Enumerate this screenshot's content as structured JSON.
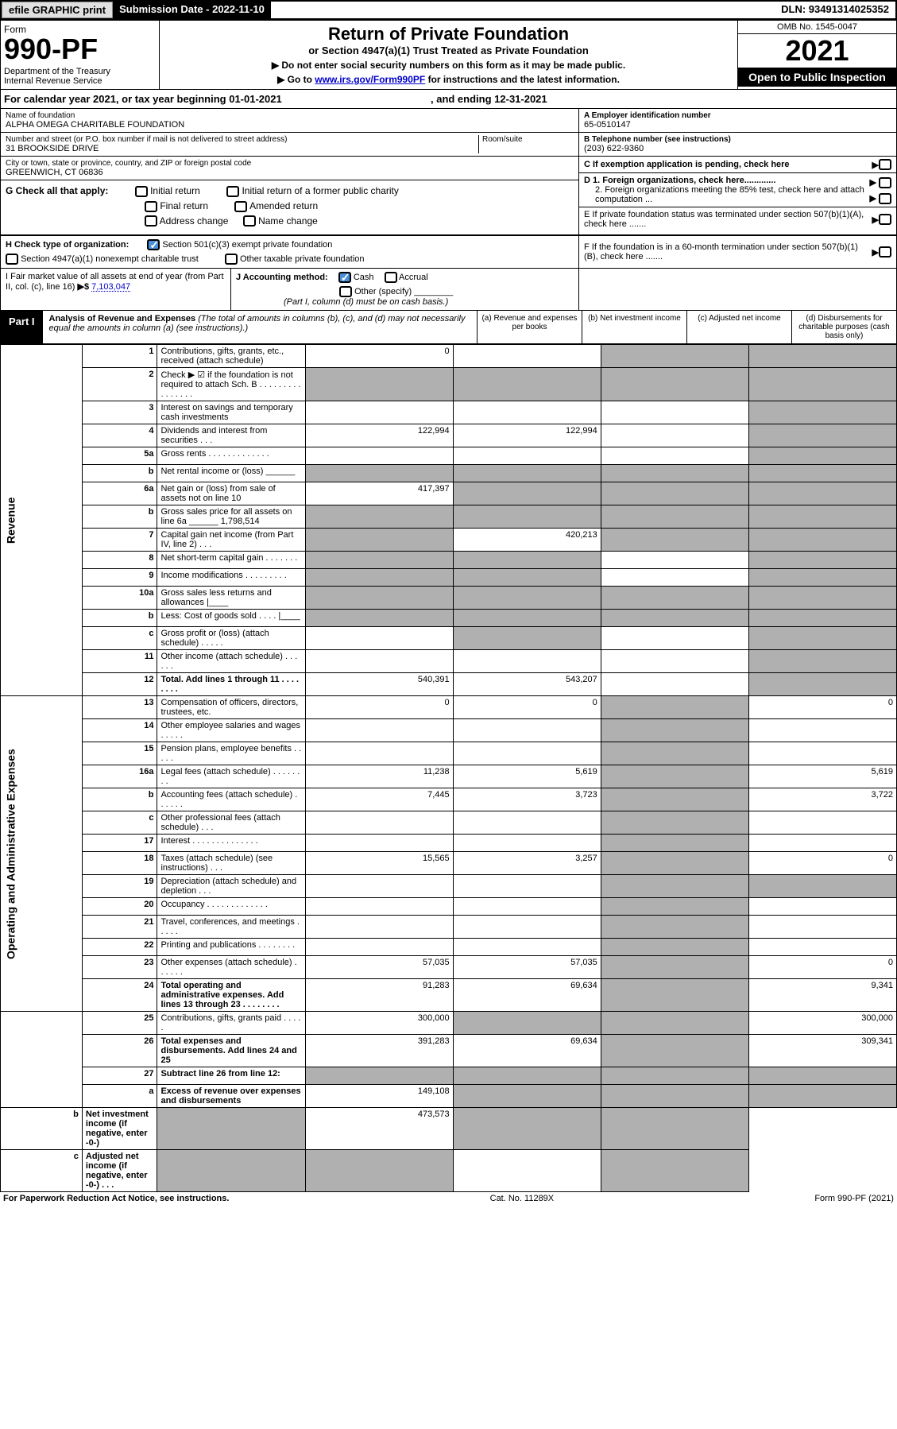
{
  "topbar": {
    "efile": "efile GRAPHIC print",
    "submission": "Submission Date - 2022-11-10",
    "dln": "DLN: 93491314025352"
  },
  "header": {
    "form": "Form",
    "num": "990-PF",
    "dept": "Department of the Treasury\nInternal Revenue Service",
    "title": "Return of Private Foundation",
    "sub1": "or Section 4947(a)(1) Trust Treated as Private Foundation",
    "sub2": "▶ Do not enter social security numbers on this form as it may be made public.",
    "sub3_pre": "▶ Go to ",
    "sub3_link": "www.irs.gov/Form990PF",
    "sub3_post": " for instructions and the latest information.",
    "omb": "OMB No. 1545-0047",
    "year": "2021",
    "open": "Open to Public Inspection"
  },
  "calyear": {
    "pre": "For calendar year 2021, or tax year beginning 01-01-2021",
    "post": ", and ending 12-31-2021"
  },
  "info": {
    "name_lbl": "Name of foundation",
    "name": "ALPHA OMEGA CHARITABLE FOUNDATION",
    "addr_lbl": "Number and street (or P.O. box number if mail is not delivered to street address)",
    "addr": "31 BROOKSIDE DRIVE",
    "room_lbl": "Room/suite",
    "city_lbl": "City or town, state or province, country, and ZIP or foreign postal code",
    "city": "GREENWICH, CT  06836",
    "a_lbl": "A Employer identification number",
    "a_val": "65-0510147",
    "b_lbl": "B Telephone number (see instructions)",
    "b_val": "(203) 622-9360",
    "c_lbl": "C If exemption application is pending, check here",
    "d1": "D 1. Foreign organizations, check here.............",
    "d2": "2. Foreign organizations meeting the 85% test, check here and attach computation ...",
    "e": "E  If private foundation status was terminated under section 507(b)(1)(A), check here .......",
    "f": "F  If the foundation is in a 60-month termination under section 507(b)(1)(B), check here ......."
  },
  "g": {
    "lbl": "G Check all that apply:",
    "opts": [
      "Initial return",
      "Initial return of a former public charity",
      "Final return",
      "Amended return",
      "Address change",
      "Name change"
    ]
  },
  "h": {
    "lbl": "H Check type of organization:",
    "o1": "Section 501(c)(3) exempt private foundation",
    "o2": "Section 4947(a)(1) nonexempt charitable trust",
    "o3": "Other taxable private foundation"
  },
  "i": {
    "lbl": "I Fair market value of all assets at end of year (from Part II, col. (c), line 16)",
    "arrow": "▶$",
    "val": "7,103,047"
  },
  "j": {
    "lbl": "J Accounting method:",
    "o1": "Cash",
    "o2": "Accrual",
    "o3": "Other (specify)",
    "note": "(Part I, column (d) must be on cash basis.)"
  },
  "part1": {
    "lbl": "Part I",
    "title": "Analysis of Revenue and Expenses",
    "note": "(The total of amounts in columns (b), (c), and (d) may not necessarily equal the amounts in column (a) (see instructions).)",
    "cols": [
      "(a)  Revenue and expenses per books",
      "(b)  Net investment income",
      "(c)  Adjusted net income",
      "(d)  Disbursements for charitable purposes (cash basis only)"
    ]
  },
  "sidelabels": {
    "rev": "Revenue",
    "opex": "Operating and Administrative Expenses"
  },
  "rows": [
    {
      "n": "1",
      "d": "Contributions, gifts, grants, etc., received (attach schedule)",
      "a": "0",
      "b": "",
      "c": "g",
      "dd": "g"
    },
    {
      "n": "2",
      "d": "Check ▶ ☑ if the foundation is not required to attach Sch. B  . . . . . . . . . . . . . . . .",
      "a": "g",
      "b": "g",
      "c": "g",
      "dd": "g"
    },
    {
      "n": "3",
      "d": "Interest on savings and temporary cash investments",
      "a": "",
      "b": "",
      "c": "",
      "dd": "g"
    },
    {
      "n": "4",
      "d": "Dividends and interest from securities   . . .",
      "a": "122,994",
      "b": "122,994",
      "c": "",
      "dd": "g"
    },
    {
      "n": "5a",
      "d": "Gross rents  . . . . . . . . . . . . .",
      "a": "",
      "b": "",
      "c": "",
      "dd": "g"
    },
    {
      "n": "b",
      "d": "Net rental income or (loss)  ______",
      "a": "g",
      "b": "g",
      "c": "g",
      "dd": "g"
    },
    {
      "n": "6a",
      "d": "Net gain or (loss) from sale of assets not on line 10",
      "a": "417,397",
      "b": "g",
      "c": "g",
      "dd": "g"
    },
    {
      "n": "b",
      "d": "Gross sales price for all assets on line 6a ______ 1,798,514",
      "a": "g",
      "b": "g",
      "c": "g",
      "dd": "g"
    },
    {
      "n": "7",
      "d": "Capital gain net income (from Part IV, line 2)  . . .",
      "a": "g",
      "b": "420,213",
      "c": "g",
      "dd": "g"
    },
    {
      "n": "8",
      "d": "Net short-term capital gain  . . . . . . .",
      "a": "g",
      "b": "g",
      "c": "",
      "dd": "g"
    },
    {
      "n": "9",
      "d": "Income modifications  . . . . . . . . .",
      "a": "g",
      "b": "g",
      "c": "",
      "dd": "g"
    },
    {
      "n": "10a",
      "d": "Gross sales less returns and allowances  |____",
      "a": "g",
      "b": "g",
      "c": "g",
      "dd": "g"
    },
    {
      "n": "b",
      "d": "Less: Cost of goods sold   . . . .  |____",
      "a": "g",
      "b": "g",
      "c": "g",
      "dd": "g"
    },
    {
      "n": "c",
      "d": "Gross profit or (loss) (attach schedule)   . . . . .",
      "a": "",
      "b": "g",
      "c": "",
      "dd": "g"
    },
    {
      "n": "11",
      "d": "Other income (attach schedule)  . . . . . .",
      "a": "",
      "b": "",
      "c": "",
      "dd": "g"
    },
    {
      "n": "12",
      "d": "Total. Add lines 1 through 11  . . . . . . . .",
      "a": "540,391",
      "b": "543,207",
      "c": "",
      "dd": "g",
      "bold": true
    },
    {
      "n": "13",
      "d": "Compensation of officers, directors, trustees, etc.",
      "a": "0",
      "b": "0",
      "c": "g",
      "dd": "0"
    },
    {
      "n": "14",
      "d": "Other employee salaries and wages  . . . . .",
      "a": "",
      "b": "",
      "c": "g",
      "dd": ""
    },
    {
      "n": "15",
      "d": "Pension plans, employee benefits  . . . . .",
      "a": "",
      "b": "",
      "c": "g",
      "dd": ""
    },
    {
      "n": "16a",
      "d": "Legal fees (attach schedule)  . . . . . . . .",
      "a": "11,238",
      "b": "5,619",
      "c": "g",
      "dd": "5,619"
    },
    {
      "n": "b",
      "d": "Accounting fees (attach schedule)  . . . . . .",
      "a": "7,445",
      "b": "3,723",
      "c": "g",
      "dd": "3,722"
    },
    {
      "n": "c",
      "d": "Other professional fees (attach schedule)  . . .",
      "a": "",
      "b": "",
      "c": "g",
      "dd": ""
    },
    {
      "n": "17",
      "d": "Interest  . . . . . . . . . . . . . .",
      "a": "",
      "b": "",
      "c": "g",
      "dd": ""
    },
    {
      "n": "18",
      "d": "Taxes (attach schedule) (see instructions)   . . .",
      "a": "15,565",
      "b": "3,257",
      "c": "g",
      "dd": "0"
    },
    {
      "n": "19",
      "d": "Depreciation (attach schedule) and depletion   . . .",
      "a": "",
      "b": "",
      "c": "g",
      "dd": "g"
    },
    {
      "n": "20",
      "d": "Occupancy  . . . . . . . . . . . . .",
      "a": "",
      "b": "",
      "c": "g",
      "dd": ""
    },
    {
      "n": "21",
      "d": "Travel, conferences, and meetings  . . . . .",
      "a": "",
      "b": "",
      "c": "g",
      "dd": ""
    },
    {
      "n": "22",
      "d": "Printing and publications  . . . . . . . .",
      "a": "",
      "b": "",
      "c": "g",
      "dd": ""
    },
    {
      "n": "23",
      "d": "Other expenses (attach schedule)  . . . . . .",
      "a": "57,035",
      "b": "57,035",
      "c": "g",
      "dd": "0"
    },
    {
      "n": "24",
      "d": "Total operating and administrative expenses. Add lines 13 through 23  . . . . . . . .",
      "a": "91,283",
      "b": "69,634",
      "c": "g",
      "dd": "9,341",
      "bold": true
    },
    {
      "n": "25",
      "d": "Contributions, gifts, grants paid   . . . . .",
      "a": "300,000",
      "b": "g",
      "c": "g",
      "dd": "300,000"
    },
    {
      "n": "26",
      "d": "Total expenses and disbursements. Add lines 24 and 25",
      "a": "391,283",
      "b": "69,634",
      "c": "g",
      "dd": "309,341",
      "bold": true
    },
    {
      "n": "27",
      "d": "Subtract line 26 from line 12:",
      "a": "g",
      "b": "g",
      "c": "g",
      "dd": "g",
      "bold": true
    },
    {
      "n": "a",
      "d": "Excess of revenue over expenses and disbursements",
      "a": "149,108",
      "b": "g",
      "c": "g",
      "dd": "g",
      "bold": true
    },
    {
      "n": "b",
      "d": "Net investment income (if negative, enter -0-)",
      "a": "g",
      "b": "473,573",
      "c": "g",
      "dd": "g",
      "bold": true
    },
    {
      "n": "c",
      "d": "Adjusted net income (if negative, enter -0-)   . . .",
      "a": "g",
      "b": "g",
      "c": "",
      "dd": "g",
      "bold": true
    }
  ],
  "footer": {
    "l": "For Paperwork Reduction Act Notice, see instructions.",
    "m": "Cat. No. 11289X",
    "r": "Form 990-PF (2021)"
  }
}
